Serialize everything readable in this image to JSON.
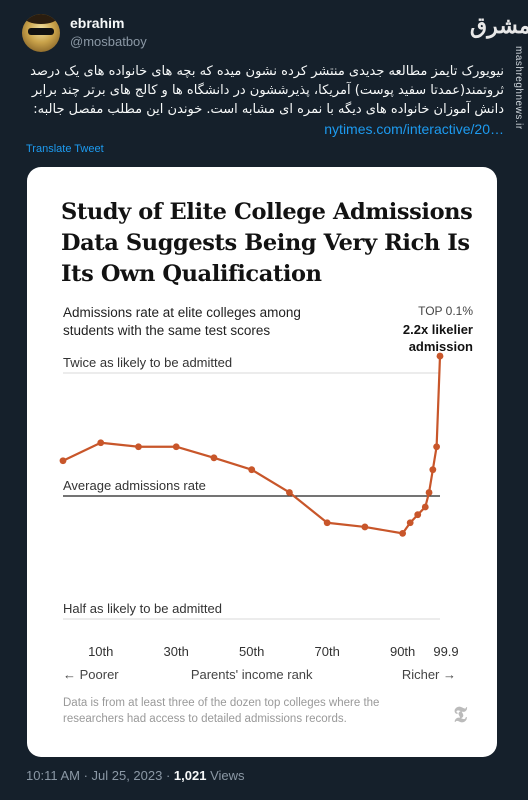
{
  "tweet": {
    "display_name": "ebrahim",
    "handle": "@mosbatboy",
    "text": "نیویورک تایمز مطالعه جدیدی منتشر کرده نشون میده که بچه های خانواده های یک درصد ثروتمند(عمدتا سفید پوست) آمریکا، پذیرششون در دانشگاه ها و کالج های برتر چند برابر دانش آموزان خانواده های دیگه با نمره ای مشابه است. خوندن این مطلب مفصل جالبه:",
    "link": "nytimes.com/interactive/20…",
    "translate_label": "Translate Tweet",
    "timestamp": "10:11 AM · Jul 25, 2023 · ",
    "views_count": "1,021",
    "views_label": " Views"
  },
  "watermark": {
    "logo_text": "مشرق",
    "side_url": "mashreghnews.ir"
  },
  "icons": {
    "avatar": "avatar-photo",
    "nyt": "nyt-logo-icon"
  },
  "colors": {
    "background": "#15202b",
    "link": "#1d9bf0",
    "line": "#c8562a",
    "muted": "#8b98a5"
  },
  "chart_data": {
    "type": "line",
    "title": "Study of Elite College Admissions Data Suggests Being Very Rich Is Its Own Qualification",
    "subtitle": "Admissions rate at elite colleges among students with the same test scores",
    "top_label": "TOP 0.1%",
    "top_annotation": "2.2x likelier admission",
    "reference_lines": {
      "twice": "Twice as likely to be admitted",
      "average": "Average admissions rate",
      "half": "Half as likely to be admitted"
    },
    "x_ticks": [
      "10th",
      "30th",
      "50th",
      "70th",
      "90th",
      "99.9"
    ],
    "x_tick_values": [
      10,
      30,
      50,
      70,
      90,
      99.9
    ],
    "x_left_label": "← Poorer",
    "x_center_label": "Parents' income rank",
    "x_right_label": "Richer →",
    "y_scale": "log2",
    "y_range": [
      0.5,
      2
    ],
    "series": [
      {
        "x": [
          0,
          10,
          20,
          30,
          40,
          50,
          60,
          70,
          80,
          90,
          92,
          94,
          96,
          97,
          98,
          99,
          99.9
        ],
        "y": [
          1.22,
          1.35,
          1.32,
          1.32,
          1.24,
          1.16,
          1.02,
          0.86,
          0.84,
          0.81,
          0.86,
          0.9,
          0.94,
          1.02,
          1.16,
          1.32,
          2.2
        ]
      }
    ],
    "source": "Data is from at least three of the dozen top colleges where the researchers had access to detailed admissions records."
  }
}
